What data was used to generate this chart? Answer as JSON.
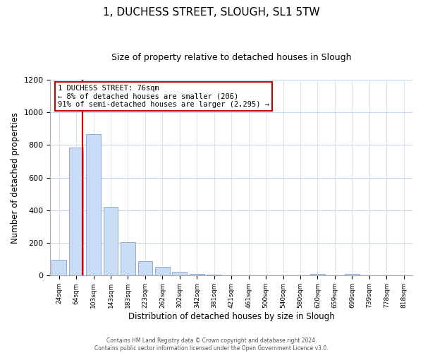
{
  "title": "1, DUCHESS STREET, SLOUGH, SL1 5TW",
  "subtitle": "Size of property relative to detached houses in Slough",
  "xlabel": "Distribution of detached houses by size in Slough",
  "ylabel": "Number of detached properties",
  "bar_labels": [
    "24sqm",
    "64sqm",
    "103sqm",
    "143sqm",
    "183sqm",
    "223sqm",
    "262sqm",
    "302sqm",
    "342sqm",
    "381sqm",
    "421sqm",
    "461sqm",
    "500sqm",
    "540sqm",
    "580sqm",
    "620sqm",
    "659sqm",
    "699sqm",
    "739sqm",
    "778sqm",
    "818sqm"
  ],
  "bar_values": [
    95,
    785,
    865,
    420,
    205,
    90,
    55,
    25,
    8,
    4,
    2,
    1,
    0,
    0,
    0,
    10,
    0,
    10,
    0,
    0,
    0
  ],
  "bar_color": "#c9dcf5",
  "bar_edge_color": "#90aed0",
  "vertical_line_color": "#cc0000",
  "vertical_line_x": 1.35,
  "annotation_line1": "1 DUCHESS STREET: 76sqm",
  "annotation_line2": "← 8% of detached houses are smaller (206)",
  "annotation_line3": "91% of semi-detached houses are larger (2,295) →",
  "annotation_box_color": "#ffffff",
  "annotation_box_edge": "#cc0000",
  "ylim": [
    0,
    1200
  ],
  "yticks": [
    0,
    200,
    400,
    600,
    800,
    1000,
    1200
  ],
  "footer_line1": "Contains HM Land Registry data © Crown copyright and database right 2024.",
  "footer_line2": "Contains public sector information licensed under the Open Government Licence v3.0.",
  "background_color": "#ffffff",
  "grid_color": "#c8d8ec",
  "title_fontsize": 11,
  "subtitle_fontsize": 9,
  "xlabel_fontsize": 8.5,
  "ylabel_fontsize": 8.5
}
